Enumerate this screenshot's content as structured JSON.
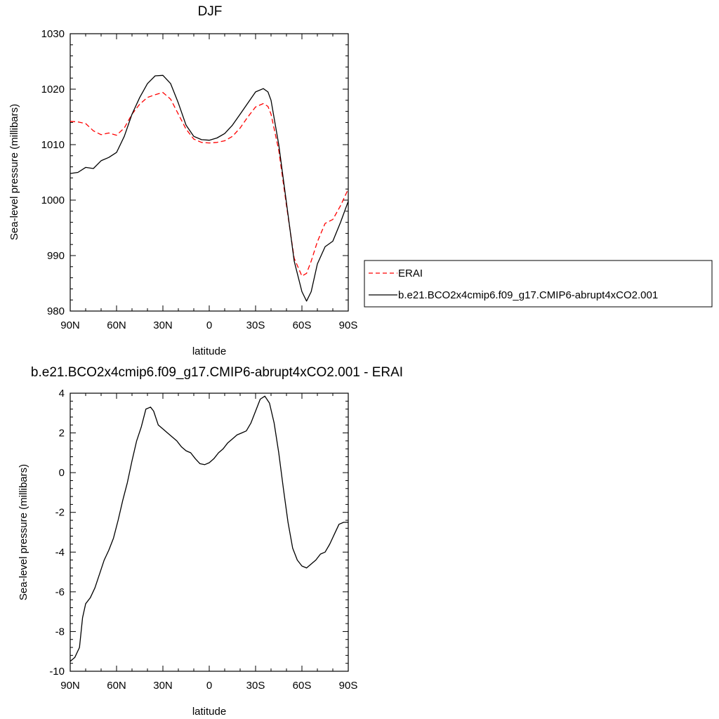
{
  "chart_data": [
    {
      "type": "line",
      "title": "DJF",
      "xlabel": "latitude",
      "ylabel": "Sea-level pressure (millibars)",
      "xlim": [
        90,
        -90
      ],
      "ylim": [
        980,
        1030
      ],
      "x_ticks": [
        90,
        60,
        30,
        0,
        -30,
        -60,
        -90
      ],
      "x_tick_labels": [
        "90N",
        "60N",
        "30N",
        "0",
        "30S",
        "60S",
        "90S"
      ],
      "y_ticks": [
        980,
        990,
        1000,
        1010,
        1020,
        1030
      ],
      "y_tick_labels": [
        "980",
        "990",
        "1000",
        "1010",
        "1020",
        "1030"
      ],
      "grid": false,
      "legend_position": "right",
      "series": [
        {
          "name": "ERAI",
          "color": "#ff0000",
          "dash": "dashed",
          "x": [
            90,
            85,
            80,
            75,
            70,
            65,
            60,
            55,
            50,
            45,
            40,
            35,
            30,
            25,
            20,
            15,
            10,
            5,
            0,
            -5,
            -10,
            -15,
            -20,
            -25,
            -30,
            -35,
            -38,
            -40,
            -45,
            -50,
            -55,
            -60,
            -63,
            -66,
            -70,
            -75,
            -80,
            -85,
            -90
          ],
          "y": [
            1014.2,
            1014.1,
            1013.8,
            1012.5,
            1011.8,
            1012.1,
            1011.7,
            1013.0,
            1015.5,
            1017.3,
            1018.5,
            1019.0,
            1019.4,
            1018.2,
            1015.5,
            1012.8,
            1011.0,
            1010.4,
            1010.3,
            1010.4,
            1010.7,
            1011.5,
            1013.0,
            1015.0,
            1016.8,
            1017.4,
            1016.9,
            1015.5,
            1009.0,
            999.0,
            989.5,
            986.3,
            986.8,
            989.0,
            992.5,
            995.8,
            996.5,
            999.0,
            1002.0
          ]
        },
        {
          "name": "b.e21.BCO2x4cmip6.f09_g17.CMIP6-abrupt4xCO2.001",
          "color": "#000000",
          "dash": "solid",
          "x": [
            90,
            85,
            80,
            75,
            70,
            65,
            60,
            55,
            50,
            45,
            40,
            35,
            30,
            25,
            20,
            15,
            10,
            5,
            0,
            -5,
            -10,
            -15,
            -20,
            -25,
            -30,
            -35,
            -38,
            -40,
            -45,
            -50,
            -55,
            -60,
            -63,
            -66,
            -70,
            -75,
            -80,
            -85,
            -90
          ],
          "y": [
            1004.8,
            1005.0,
            1005.9,
            1005.7,
            1007.1,
            1007.7,
            1008.6,
            1011.5,
            1015.5,
            1018.5,
            1021.0,
            1022.4,
            1022.5,
            1021.0,
            1017.5,
            1013.5,
            1011.5,
            1010.9,
            1010.8,
            1011.2,
            1012.0,
            1013.5,
            1015.5,
            1017.5,
            1019.5,
            1020.1,
            1019.5,
            1018.0,
            1010.0,
            999.5,
            989.0,
            983.5,
            981.8,
            983.5,
            988.5,
            991.6,
            992.6,
            996.0,
            999.8
          ]
        }
      ]
    },
    {
      "type": "line",
      "title": "b.e21.BCO2x4cmip6.f09_g17.CMIP6-abrupt4xCO2.001 - ERAI",
      "xlabel": "latitude",
      "ylabel": "Sea-level pressure (millibars)",
      "xlim": [
        90,
        -90
      ],
      "ylim": [
        -10,
        4
      ],
      "x_ticks": [
        90,
        60,
        30,
        0,
        -30,
        -60,
        -90
      ],
      "x_tick_labels": [
        "90N",
        "60N",
        "30N",
        "0",
        "30S",
        "60S",
        "90S"
      ],
      "y_ticks": [
        -10,
        -8,
        -6,
        -4,
        -2,
        0,
        2,
        4
      ],
      "y_tick_labels": [
        "-10",
        "-8",
        "-6",
        "-4",
        "-2",
        "0",
        "2",
        "4"
      ],
      "grid": false,
      "series": [
        {
          "color": "#000000",
          "dash": "solid",
          "x": [
            90,
            87,
            84,
            82,
            80,
            77,
            74,
            71,
            68,
            65,
            62,
            59,
            56,
            53,
            50,
            47,
            44,
            41,
            38,
            36,
            33,
            30,
            27,
            24,
            21,
            18,
            15,
            12,
            9,
            6,
            3,
            0,
            -3,
            -6,
            -9,
            -12,
            -15,
            -18,
            -21,
            -24,
            -27,
            -30,
            -33,
            -36,
            -39,
            -42,
            -45,
            -48,
            -51,
            -54,
            -57,
            -60,
            -63,
            -66,
            -69,
            -72,
            -75,
            -78,
            -81,
            -84,
            -87,
            -90
          ],
          "y": [
            -9.5,
            -9.3,
            -8.8,
            -7.3,
            -6.6,
            -6.3,
            -5.8,
            -5.1,
            -4.4,
            -3.9,
            -3.3,
            -2.4,
            -1.4,
            -0.5,
            0.6,
            1.6,
            2.3,
            3.2,
            3.3,
            3.1,
            2.4,
            2.2,
            2.0,
            1.8,
            1.6,
            1.3,
            1.1,
            1.0,
            0.7,
            0.45,
            0.4,
            0.5,
            0.7,
            1.0,
            1.2,
            1.5,
            1.7,
            1.9,
            2.0,
            2.1,
            2.5,
            3.1,
            3.7,
            3.85,
            3.5,
            2.5,
            1.0,
            -0.8,
            -2.5,
            -3.8,
            -4.4,
            -4.7,
            -4.8,
            -4.6,
            -4.4,
            -4.1,
            -4.0,
            -3.6,
            -3.1,
            -2.6,
            -2.5,
            -2.5
          ]
        }
      ]
    }
  ]
}
